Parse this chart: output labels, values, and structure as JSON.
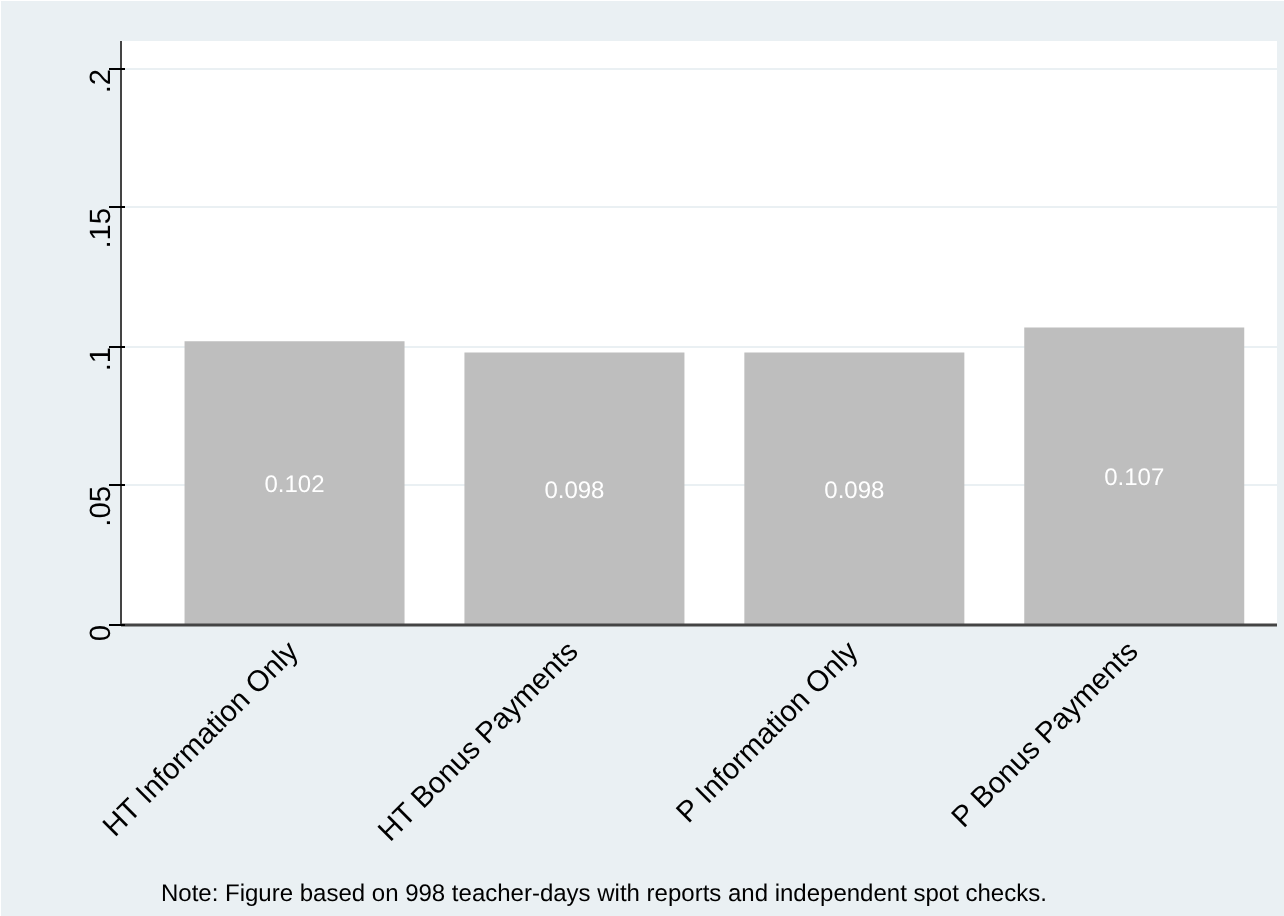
{
  "chart_data": {
    "type": "bar",
    "categories": [
      "HT Information Only",
      "HT Bonus Payments",
      "P Information Only",
      "P Bonus Payments"
    ],
    "values": [
      0.102,
      0.098,
      0.098,
      0.107
    ],
    "color": "#bebebe",
    "data_labels": true,
    "ylim": [
      0,
      0.21
    ],
    "yticks": [
      {
        "value": 0,
        "label": "0"
      },
      {
        "value": 0.05,
        "label": ".05"
      },
      {
        "value": 0.1,
        "label": ".1"
      },
      {
        "value": 0.15,
        "label": ".15"
      },
      {
        "value": 0.2,
        "label": ".2"
      }
    ],
    "grid": "y",
    "annotations": [
      "Note: Figure based on 998 teacher-days with reports and independent spot checks."
    ]
  }
}
